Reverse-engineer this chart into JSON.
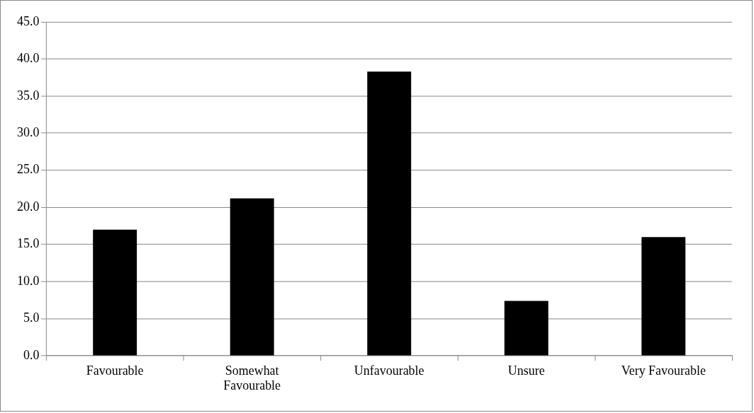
{
  "chart_data": {
    "type": "bar",
    "categories": [
      "Favourable",
      "Somewhat Favourable",
      "Unfavourable",
      "Unsure",
      "Very Favourable"
    ],
    "values": [
      17.0,
      21.2,
      38.3,
      7.4,
      16.0
    ],
    "color": "#000000",
    "ylim": [
      0,
      45
    ],
    "yticks": [
      {
        "value": 0,
        "label": "0.0"
      },
      {
        "value": 5,
        "label": "5.0"
      },
      {
        "value": 10,
        "label": "10.0"
      },
      {
        "value": 15,
        "label": "15.0"
      },
      {
        "value": 20,
        "label": "20.0"
      },
      {
        "value": 25,
        "label": "25.0"
      },
      {
        "value": 30,
        "label": "30.0"
      },
      {
        "value": 35,
        "label": "35.0"
      },
      {
        "value": 40,
        "label": "40.0"
      },
      {
        "value": 45,
        "label": "45.0"
      }
    ],
    "grid": "y",
    "legend": false
  }
}
